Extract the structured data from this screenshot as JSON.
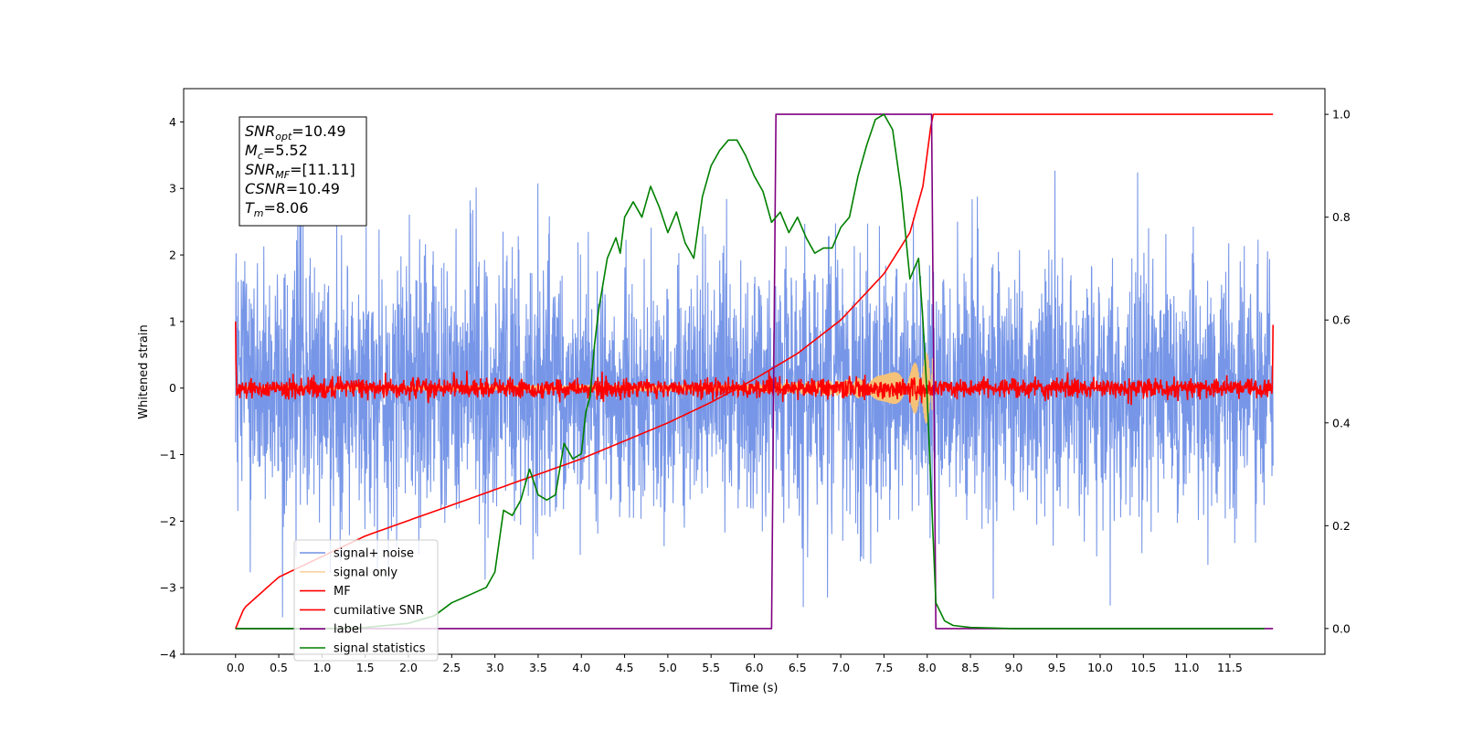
{
  "chart_data": {
    "type": "line",
    "title": "",
    "xlabel": "Time (s)",
    "ylabel": "Whitened strain",
    "y2label": "",
    "xlim": [
      -0.6,
      12.6
    ],
    "ylim": [
      -4.0,
      4.5
    ],
    "y2lim": [
      -0.05,
      1.05
    ],
    "x_ticks": [
      0.0,
      0.5,
      1.0,
      1.5,
      2.0,
      2.5,
      3.0,
      3.5,
      4.0,
      4.5,
      5.0,
      5.5,
      6.0,
      6.5,
      7.0,
      7.5,
      8.0,
      8.5,
      9.0,
      9.5,
      10.0,
      10.5,
      11.0,
      11.5
    ],
    "x_tick_labels": [
      "0.0",
      "0.5",
      "1.0",
      "1.5",
      "2.0",
      "2.5",
      "3.0",
      "3.5",
      "4.0",
      "4.5",
      "5.0",
      "5.5",
      "6.0",
      "6.5",
      "7.0",
      "7.5",
      "8.0",
      "8.5",
      "9.0",
      "9.5",
      "10.0",
      "10.5",
      "11.0",
      "11.5"
    ],
    "y_ticks": [
      -4,
      -3,
      -2,
      -1,
      0,
      1,
      2,
      3,
      4
    ],
    "y_tick_labels": [
      "−4",
      "−3",
      "−2",
      "−1",
      "0",
      "1",
      "2",
      "3",
      "4"
    ],
    "y2_ticks": [
      0.0,
      0.2,
      0.4,
      0.6,
      0.8,
      1.0
    ],
    "y2_tick_labels": [
      "0.0",
      "0.2",
      "0.4",
      "0.6",
      "0.8",
      "1.0"
    ],
    "grid": false,
    "legend_position": "lower-left",
    "info_box": {
      "position": "top-left",
      "lines": [
        "SNRopt=10.49",
        "Mc=5.52",
        "SNRMF=[11.11]",
        "CSNR=10.49",
        "Tm=8.06"
      ],
      "rendered": [
        {
          "base": "SNR",
          "sub": "opt",
          "rest": "=10.49"
        },
        {
          "base": "M",
          "sub": "c",
          "rest": "=5.52"
        },
        {
          "base": "SNR",
          "sub": "MF",
          "rest": "=[11.11]"
        },
        {
          "base": "CSNR",
          "sub": "",
          "rest": "=10.49"
        },
        {
          "base": "T",
          "sub": "m",
          "rest": "=8.06"
        }
      ]
    },
    "series": [
      {
        "name": "signal+ noise",
        "color": "#7090e6",
        "axis": "left",
        "kind": "noise",
        "x_range": [
          0.0,
          12.0
        ],
        "typical_range": [
          -1.5,
          1.5
        ],
        "extremes": [
          -3.6,
          4.2
        ]
      },
      {
        "name": "signal only",
        "color": "#f5c27a",
        "axis": "left",
        "kind": "chirp",
        "x_range": [
          0.0,
          8.06
        ],
        "envelope": {
          "x": [
            0.0,
            6.0,
            7.0,
            7.5,
            7.8,
            8.0,
            8.06
          ],
          "y": [
            0.02,
            0.06,
            0.12,
            0.2,
            0.32,
            0.55,
            0.8
          ]
        }
      },
      {
        "name": "MF",
        "color": "#ff0000",
        "axis": "left",
        "kind": "noise",
        "x_range": [
          0.0,
          12.0
        ],
        "typical_range": [
          -0.15,
          0.15
        ],
        "edge_values": [
          1.0,
          0.95
        ]
      },
      {
        "name": "cumilative SNR",
        "color": "#ff0000",
        "axis": "right",
        "x": [
          0.0,
          0.1,
          0.5,
          1.0,
          1.5,
          2.0,
          2.5,
          3.0,
          3.5,
          4.0,
          4.5,
          5.0,
          5.5,
          6.0,
          6.5,
          7.0,
          7.5,
          7.8,
          7.95,
          8.06,
          12.0
        ],
        "y": [
          0.0,
          0.04,
          0.1,
          0.14,
          0.18,
          0.21,
          0.24,
          0.27,
          0.3,
          0.33,
          0.365,
          0.4,
          0.44,
          0.485,
          0.535,
          0.6,
          0.69,
          0.77,
          0.86,
          1.0,
          1.0
        ]
      },
      {
        "name": "label",
        "color": "#800080",
        "axis": "right",
        "x": [
          0.0,
          6.2,
          6.25,
          8.05,
          8.1,
          12.0
        ],
        "y": [
          0.0,
          0.0,
          1.0,
          1.0,
          0.0,
          0.0
        ]
      },
      {
        "name": "signal statistics",
        "color": "#008000",
        "axis": "right",
        "x": [
          0.0,
          0.5,
          1.0,
          1.5,
          2.0,
          2.3,
          2.5,
          2.7,
          2.9,
          3.0,
          3.1,
          3.2,
          3.3,
          3.4,
          3.5,
          3.6,
          3.7,
          3.8,
          3.9,
          4.0,
          4.05,
          4.1,
          4.15,
          4.2,
          4.3,
          4.4,
          4.45,
          4.5,
          4.6,
          4.7,
          4.8,
          4.9,
          5.0,
          5.1,
          5.2,
          5.3,
          5.4,
          5.5,
          5.6,
          5.7,
          5.8,
          5.9,
          6.0,
          6.1,
          6.2,
          6.3,
          6.4,
          6.5,
          6.6,
          6.7,
          6.8,
          6.9,
          7.0,
          7.1,
          7.2,
          7.3,
          7.4,
          7.5,
          7.6,
          7.7,
          7.8,
          7.9,
          7.95,
          8.0,
          8.05,
          8.1,
          8.2,
          8.3,
          8.5,
          9.0,
          10.0,
          11.0,
          11.9
        ],
        "y": [
          0.0,
          0.0,
          0.0,
          0.002,
          0.01,
          0.025,
          0.05,
          0.065,
          0.08,
          0.11,
          0.23,
          0.22,
          0.25,
          0.31,
          0.26,
          0.25,
          0.26,
          0.36,
          0.33,
          0.34,
          0.42,
          0.45,
          0.55,
          0.62,
          0.72,
          0.76,
          0.73,
          0.8,
          0.83,
          0.8,
          0.86,
          0.82,
          0.77,
          0.81,
          0.75,
          0.72,
          0.84,
          0.9,
          0.93,
          0.95,
          0.95,
          0.92,
          0.88,
          0.85,
          0.79,
          0.81,
          0.77,
          0.8,
          0.76,
          0.73,
          0.74,
          0.74,
          0.78,
          0.8,
          0.88,
          0.94,
          0.99,
          1.0,
          0.97,
          0.85,
          0.68,
          0.72,
          0.6,
          0.45,
          0.25,
          0.05,
          0.015,
          0.006,
          0.002,
          0.0,
          0.0,
          0.0,
          0.0
        ]
      }
    ]
  }
}
